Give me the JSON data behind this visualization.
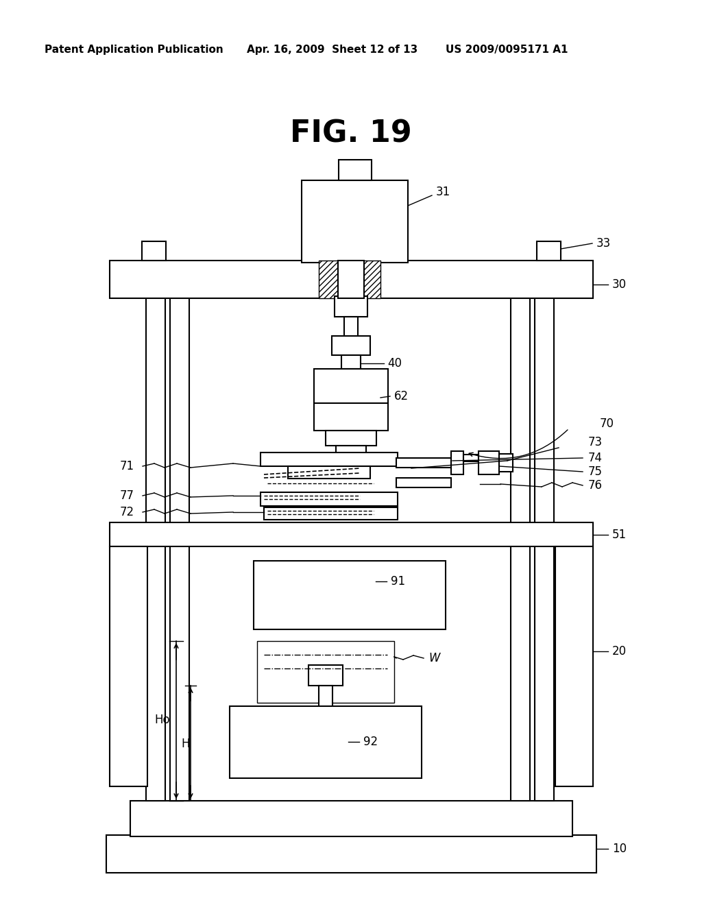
{
  "bg_color": "#ffffff",
  "line_color": "#000000",
  "title": "FIG. 19",
  "header_left": "Patent Application Publication",
  "header_mid": "Apr. 16, 2009  Sheet 12 of 13",
  "header_right": "US 2009/0095171 A1",
  "title_fontsize": 32,
  "header_fontsize": 11,
  "label_fontsize": 12
}
